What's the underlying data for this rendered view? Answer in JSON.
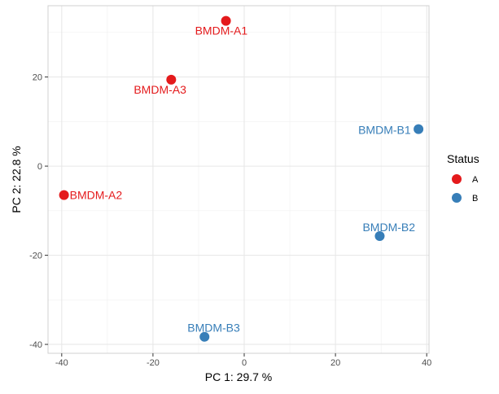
{
  "chart_data": {
    "type": "scatter",
    "title": "",
    "xlabel": "PC 1: 29.7 %",
    "ylabel": "PC 2: 22.8 %",
    "xlim": [
      -43,
      40.5
    ],
    "ylim": [
      -42,
      36
    ],
    "x_ticks": [
      -40,
      -20,
      0,
      20,
      40
    ],
    "y_ticks": [
      -40,
      -20,
      0,
      20
    ],
    "x_tick_labels": [
      "-40",
      "-20",
      "0",
      "20",
      "40"
    ],
    "y_tick_labels": [
      "-40",
      "-20",
      "0",
      "20"
    ],
    "grid": true,
    "legend": {
      "title": "Status",
      "position": "right",
      "entries": [
        {
          "label": "A",
          "color": "#e41a1c"
        },
        {
          "label": "B",
          "color": "#377eb8"
        }
      ]
    },
    "series": [
      {
        "name": "A",
        "color": "#e41a1c",
        "points": [
          {
            "label": "BMDM-A1",
            "x": -4,
            "y": 32.6
          },
          {
            "label": "BMDM-A3",
            "x": -16,
            "y": 19.4
          },
          {
            "label": "BMDM-A2",
            "x": -39.5,
            "y": -6.5
          }
        ]
      },
      {
        "name": "B",
        "color": "#377eb8",
        "points": [
          {
            "label": "BMDM-B1",
            "x": 38.2,
            "y": 8.3
          },
          {
            "label": "BMDM-B2",
            "x": 29.7,
            "y": -15.7
          },
          {
            "label": "BMDM-B3",
            "x": -8.7,
            "y": -38.3
          }
        ]
      }
    ]
  }
}
